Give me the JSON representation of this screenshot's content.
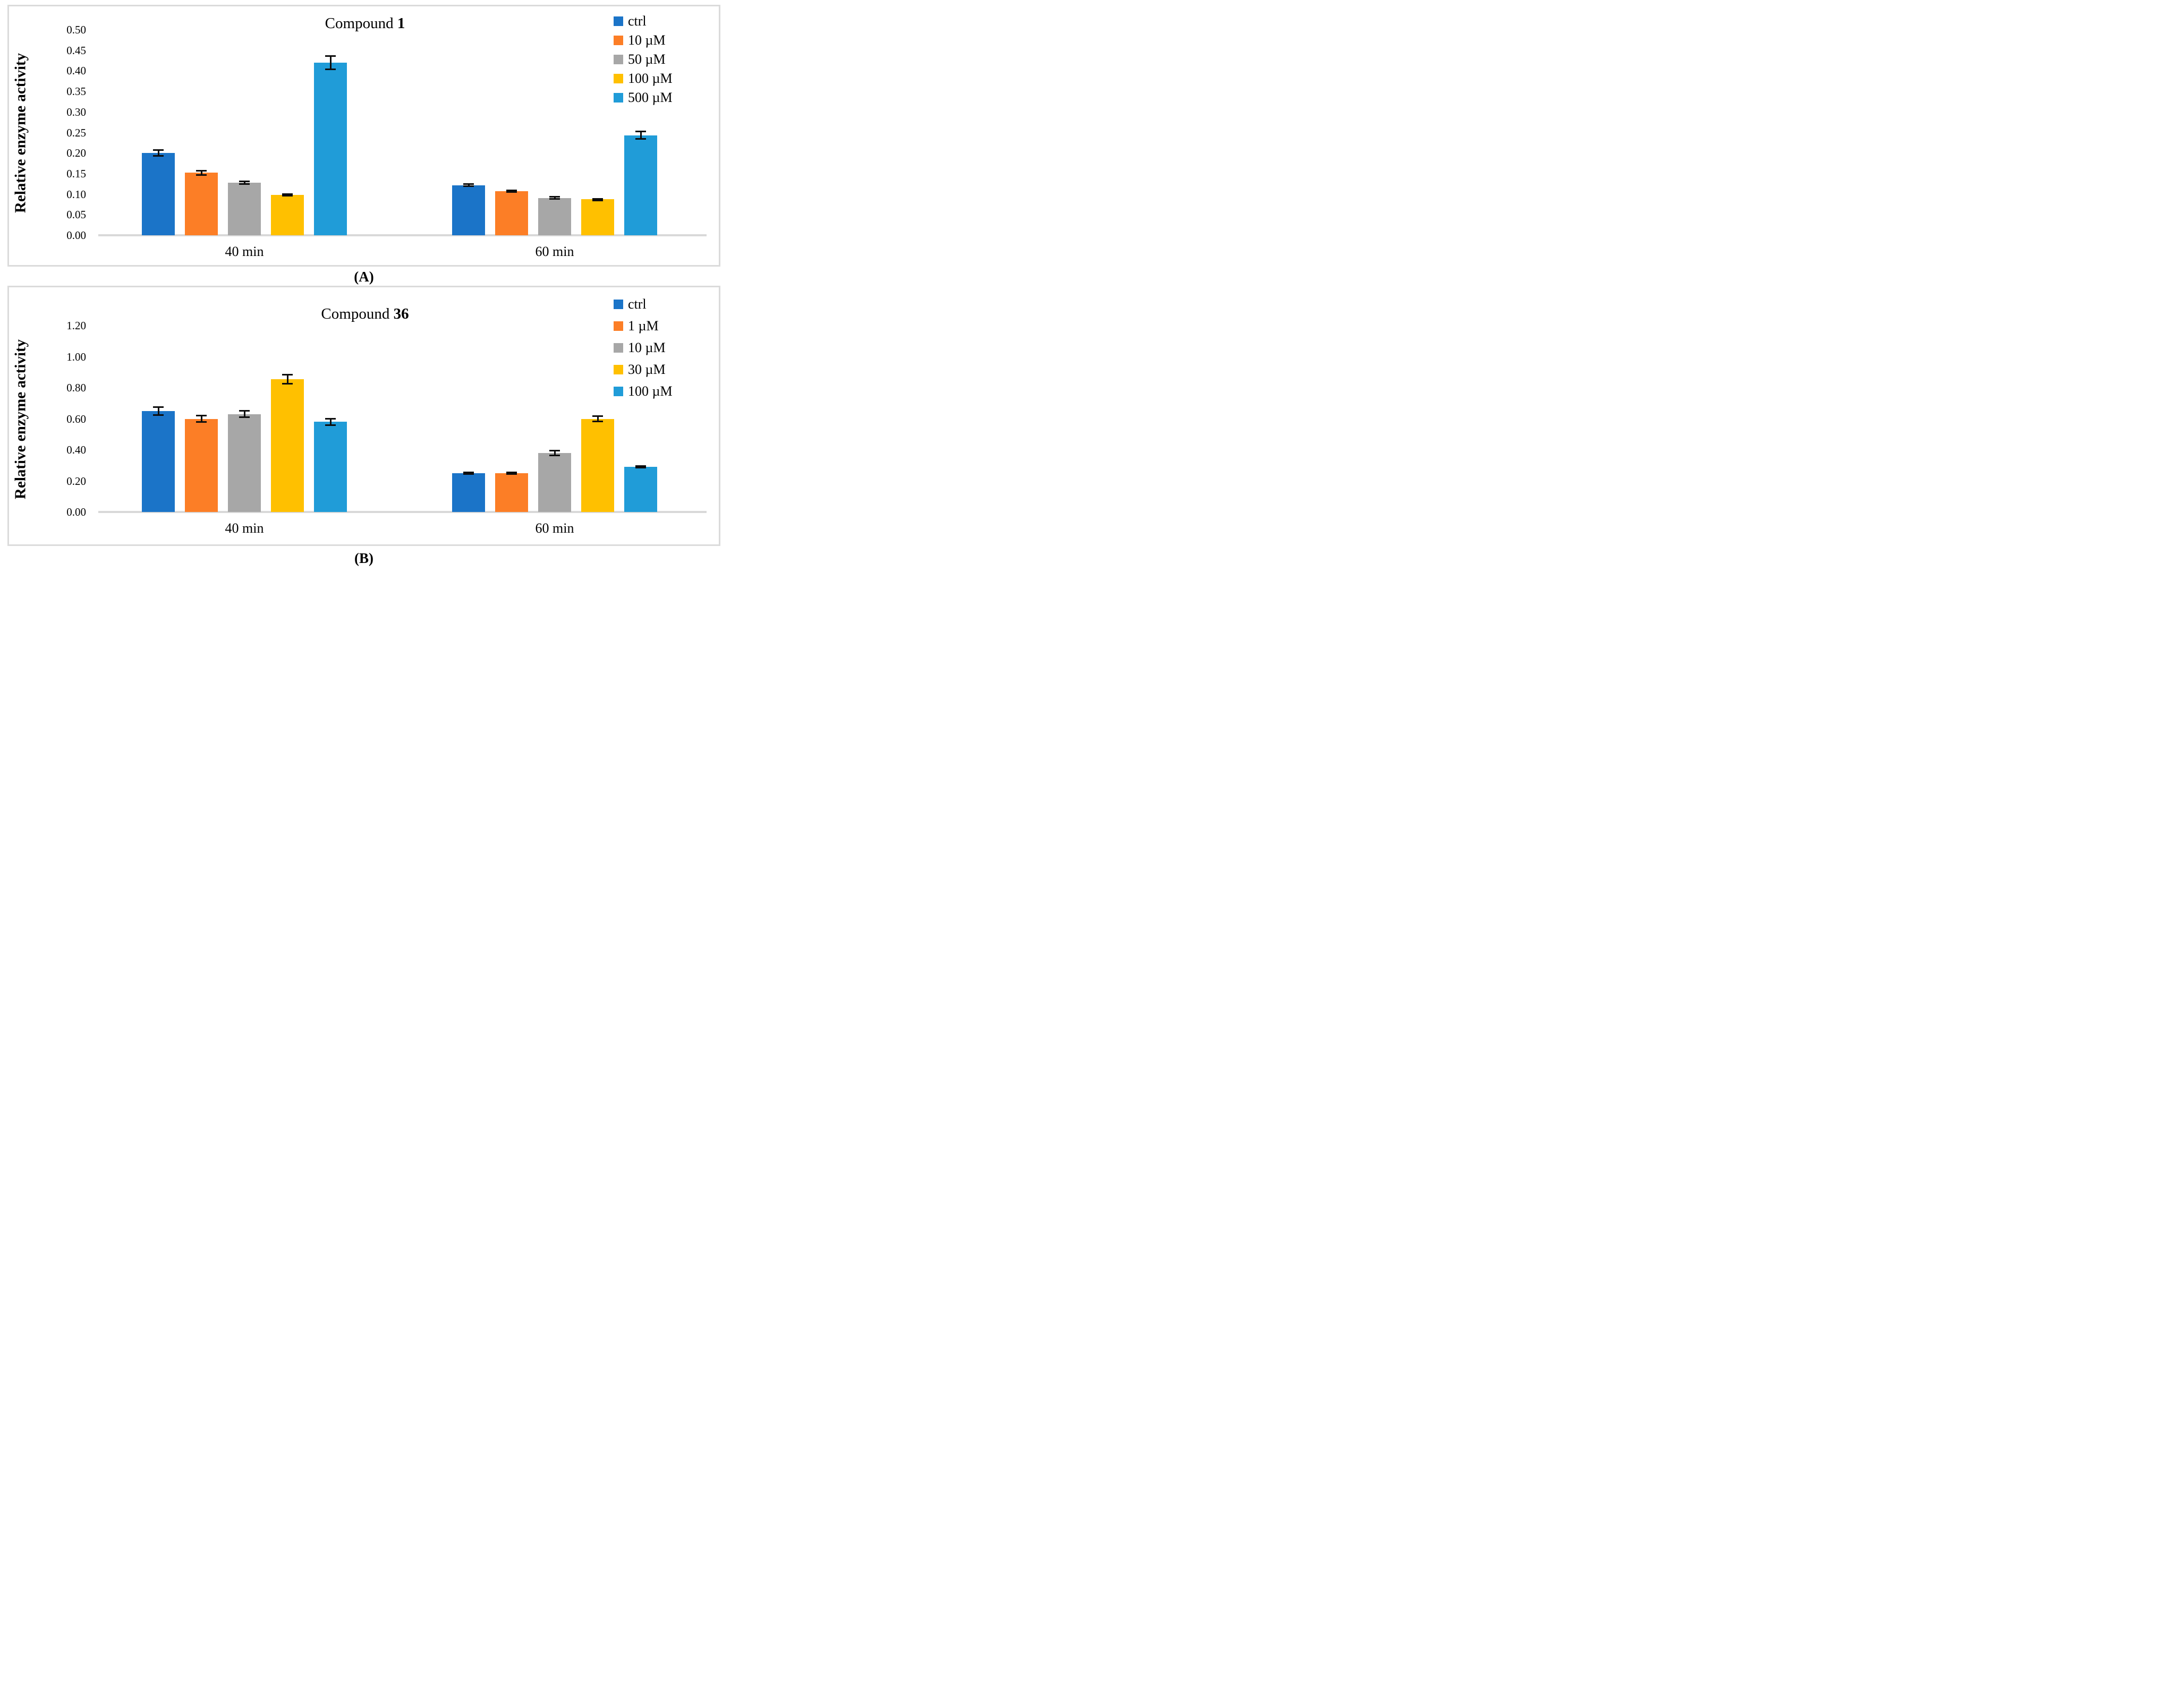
{
  "figure": {
    "background": "#ffffff",
    "panel_border_color": "#dbdbdb",
    "axis_line_color": "#d9d9d9",
    "error_bar_color": "#0d0d0d"
  },
  "chart_data": [
    {
      "type": "bar",
      "panel": "A",
      "caption": "(A)",
      "title": "Compound 1",
      "title_plain": "Compound ",
      "title_bold": "1",
      "ylabel": "Relative enzyme activity",
      "ylim": [
        0,
        0.5
      ],
      "ytick_step": 0.05,
      "yticks": [
        "0.50",
        "0.45",
        "0.40",
        "0.35",
        "0.30",
        "0.25",
        "0.20",
        "0.15",
        "0.10",
        "0.05",
        "0.00"
      ],
      "categories": [
        "40 min",
        "60 min"
      ],
      "grid": false,
      "legend_position": "top-right",
      "series": [
        {
          "name": "ctrl",
          "color": "#1b74c8",
          "values": [
            0.2,
            0.122
          ],
          "errors": [
            0.009,
            0.005
          ]
        },
        {
          "name": "10 µM",
          "color": "#fc7e26",
          "values": [
            0.152,
            0.107
          ],
          "errors": [
            0.007,
            0.004
          ]
        },
        {
          "name": "50 µM",
          "color": "#a7a7a7",
          "values": [
            0.128,
            0.091
          ],
          "errors": [
            0.005,
            0.004
          ]
        },
        {
          "name": "100 µM",
          "color": "#ffc000",
          "values": [
            0.098,
            0.088
          ],
          "errors": [
            0.004,
            0.003
          ]
        },
        {
          "name": "500 µM",
          "color": "#209cd8",
          "values": [
            0.42,
            0.243
          ],
          "errors": [
            0.018,
            0.011
          ]
        }
      ]
    },
    {
      "type": "bar",
      "panel": "B",
      "caption": "(B)",
      "title": "Compound 36",
      "title_plain": "Compound ",
      "title_bold": "36",
      "ylabel": "Relative enzyme activity",
      "ylim": [
        0,
        1.2
      ],
      "ytick_step": 0.2,
      "yticks": [
        "1.20",
        "1.00",
        "0.80",
        "0.60",
        "0.40",
        "0.20",
        "0.00"
      ],
      "categories": [
        "40 min",
        "60 min"
      ],
      "grid": false,
      "legend_position": "top-right",
      "series": [
        {
          "name": "ctrl",
          "color": "#1b74c8",
          "values": [
            0.65,
            0.25
          ],
          "errors": [
            0.03,
            0.01
          ]
        },
        {
          "name": "1 µM",
          "color": "#fc7e26",
          "values": [
            0.6,
            0.25
          ],
          "errors": [
            0.026,
            0.01
          ]
        },
        {
          "name": "10 µM",
          "color": "#a7a7a7",
          "values": [
            0.63,
            0.38
          ],
          "errors": [
            0.026,
            0.02
          ]
        },
        {
          "name": "30 µM",
          "color": "#ffc000",
          "values": [
            0.855,
            0.6
          ],
          "errors": [
            0.035,
            0.023
          ]
        },
        {
          "name": "100 µM",
          "color": "#209cd8",
          "values": [
            0.58,
            0.29
          ],
          "errors": [
            0.026,
            0.01
          ]
        }
      ]
    }
  ]
}
